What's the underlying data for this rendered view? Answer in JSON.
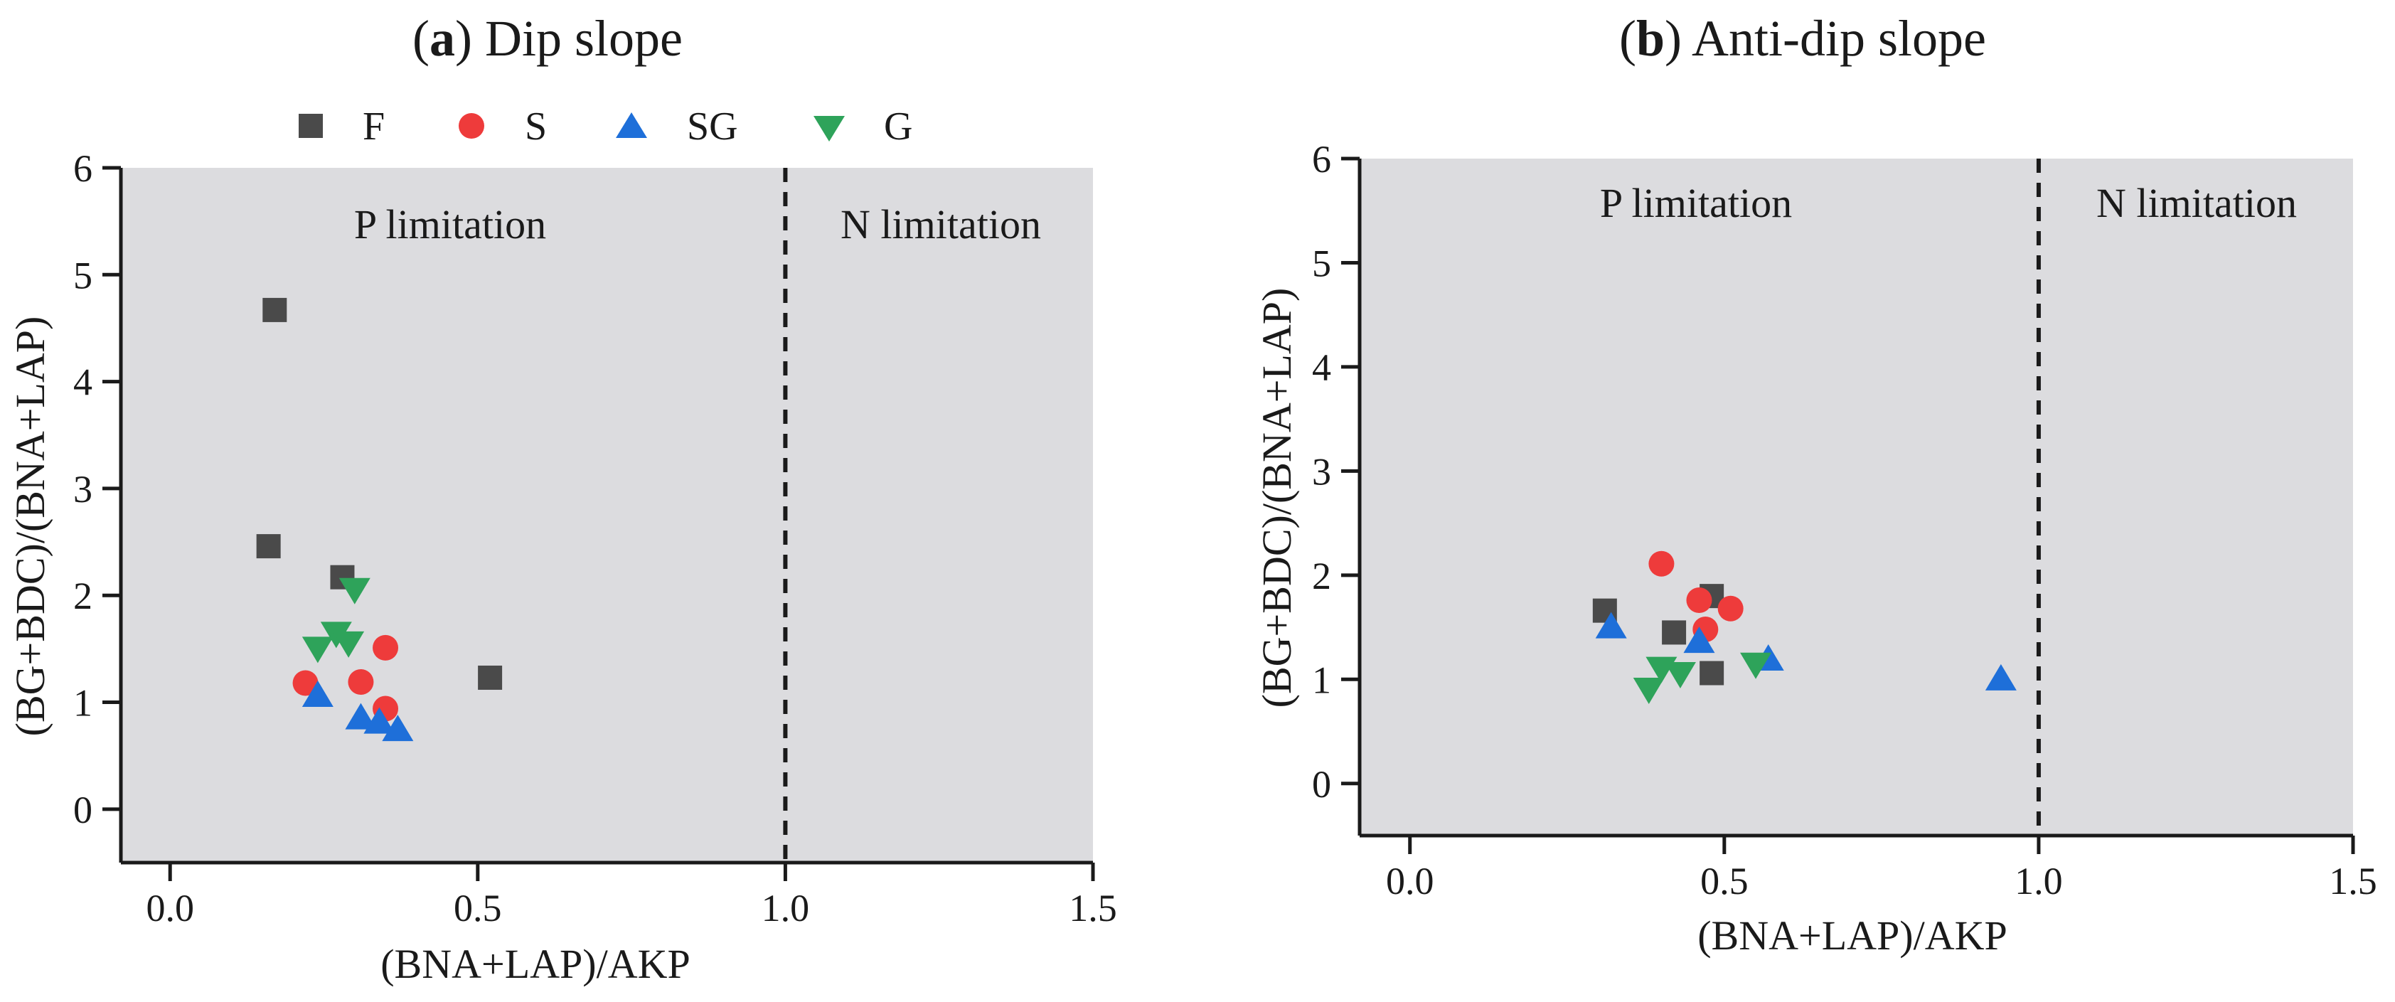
{
  "legend": [
    {
      "key": "F",
      "label": "F",
      "color": "#4a4a4a",
      "marker": "square"
    },
    {
      "key": "S",
      "label": "S",
      "color": "#ee3b3b",
      "marker": "circle"
    },
    {
      "key": "SG",
      "label": "SG",
      "color": "#1e6fd9",
      "marker": "triangle-up"
    },
    {
      "key": "G",
      "label": "G",
      "color": "#2ea35a",
      "marker": "triangle-down"
    }
  ],
  "chart_data": [
    {
      "type": "scatter",
      "panel_letter": "a",
      "title": "Dip slope",
      "xlabel": "(BNA+LAP)/AKP",
      "ylabel": "(BG+BDC)/(BNA+LAP)",
      "xlim": [
        -0.08,
        1.5
      ],
      "ylim": [
        -0.5,
        6
      ],
      "xticks": [
        "0.0",
        "0.5",
        "1.0",
        "1.5"
      ],
      "yticks": [
        "0",
        "1",
        "2",
        "3",
        "4",
        "5",
        "6"
      ],
      "threshold_x": 1.0,
      "region_labels": {
        "left": "P limitation",
        "right": "N limitation"
      },
      "grid": false,
      "legend_position": "top",
      "series": [
        {
          "name": "F",
          "points": [
            [
              0.17,
              4.67
            ],
            [
              0.16,
              2.46
            ],
            [
              0.28,
              2.17
            ],
            [
              0.52,
              1.23
            ]
          ]
        },
        {
          "name": "S",
          "points": [
            [
              0.22,
              1.18
            ],
            [
              0.31,
              1.19
            ],
            [
              0.35,
              1.51
            ],
            [
              0.35,
              0.94
            ]
          ]
        },
        {
          "name": "SG",
          "points": [
            [
              0.24,
              1.07
            ],
            [
              0.31,
              0.86
            ],
            [
              0.34,
              0.82
            ],
            [
              0.37,
              0.75
            ]
          ]
        },
        {
          "name": "G",
          "points": [
            [
              0.3,
              2.05
            ],
            [
              0.27,
              1.64
            ],
            [
              0.29,
              1.55
            ],
            [
              0.24,
              1.5
            ]
          ]
        }
      ]
    },
    {
      "type": "scatter",
      "panel_letter": "b",
      "title": "Anti-dip slope",
      "xlabel": "(BNA+LAP)/AKP",
      "ylabel": "(BG+BDC)/(BNA+LAP)",
      "xlim": [
        -0.08,
        1.5
      ],
      "ylim": [
        -0.5,
        6
      ],
      "xticks": [
        "0.0",
        "0.5",
        "1.0",
        "1.5"
      ],
      "yticks": [
        "0",
        "1",
        "2",
        "3",
        "4",
        "5",
        "6"
      ],
      "threshold_x": 1.0,
      "region_labels": {
        "left": "P limitation",
        "right": "N limitation"
      },
      "grid": false,
      "series": [
        {
          "name": "F",
          "points": [
            [
              0.31,
              1.66
            ],
            [
              0.48,
              1.8
            ],
            [
              0.42,
              1.45
            ],
            [
              0.48,
              1.06
            ]
          ]
        },
        {
          "name": "S",
          "points": [
            [
              0.4,
              2.11
            ],
            [
              0.46,
              1.76
            ],
            [
              0.51,
              1.68
            ],
            [
              0.47,
              1.48
            ]
          ]
        },
        {
          "name": "SG",
          "points": [
            [
              0.32,
              1.51
            ],
            [
              0.46,
              1.37
            ],
            [
              0.57,
              1.2
            ],
            [
              0.94,
              1.01
            ]
          ]
        },
        {
          "name": "G",
          "points": [
            [
              0.38,
              0.9
            ],
            [
              0.4,
              1.1
            ],
            [
              0.43,
              1.05
            ],
            [
              0.55,
              1.14
            ]
          ]
        }
      ]
    }
  ]
}
